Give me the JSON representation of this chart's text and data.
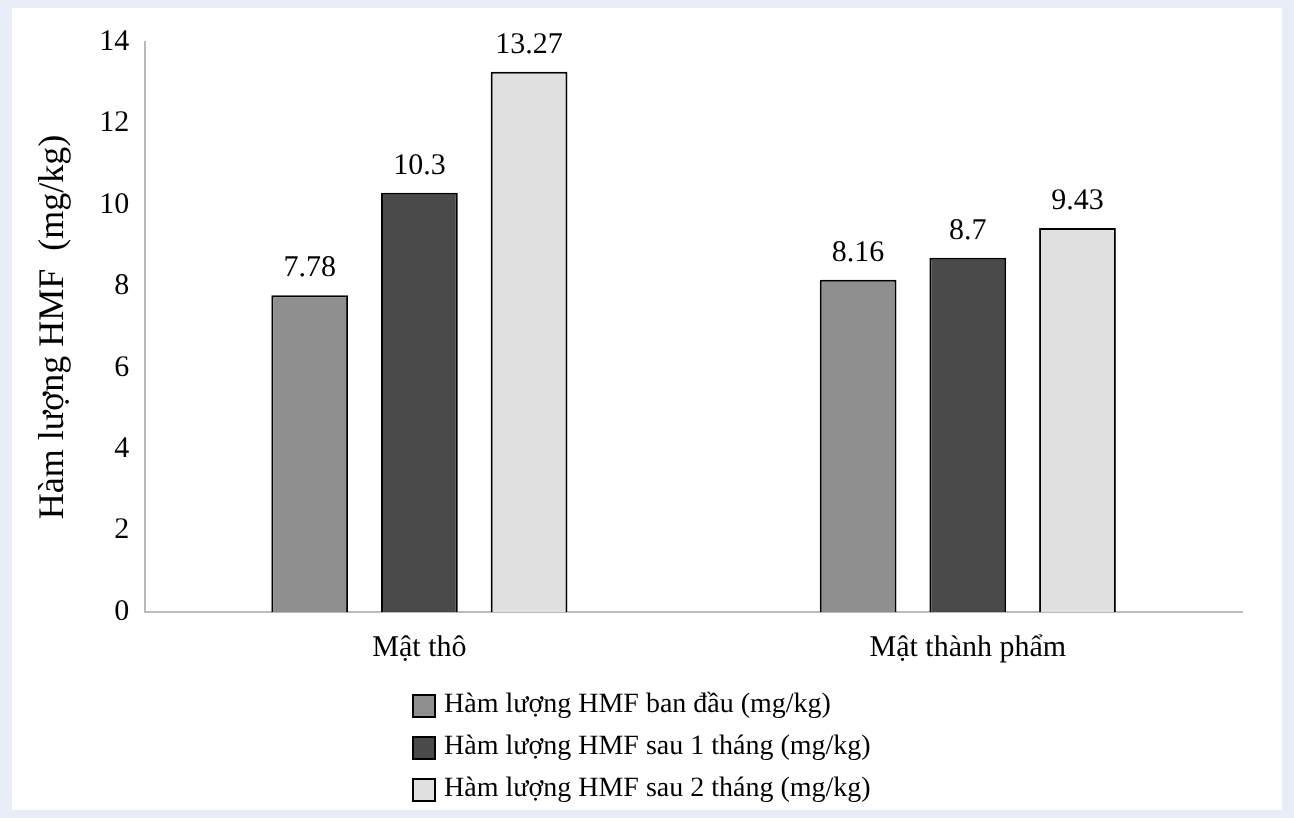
{
  "chart_data": {
    "type": "bar",
    "ylabel": "Hàm lượng HMF  (mg/kg)",
    "categories": [
      "Mật thô",
      "Mật thành phẩm"
    ],
    "series": [
      {
        "name": "Hàm lượng HMF ban đầu (mg/kg)",
        "color": "#8f8f8f",
        "values": [
          7.78,
          8.16
        ]
      },
      {
        "name": "Hàm lượng HMF sau 1 tháng (mg/kg)",
        "color": "#4a4a4a",
        "values": [
          10.3,
          8.7
        ]
      },
      {
        "name": "Hàm lượng HMF sau 2 tháng (mg/kg)",
        "color": "#e0e0e0",
        "values": [
          13.27,
          9.43
        ]
      }
    ],
    "ylim": [
      0,
      14
    ],
    "yticks": [
      0,
      2,
      4,
      6,
      8,
      10,
      12,
      14
    ],
    "grid": false,
    "legend": "bottom",
    "data_labels": true
  }
}
